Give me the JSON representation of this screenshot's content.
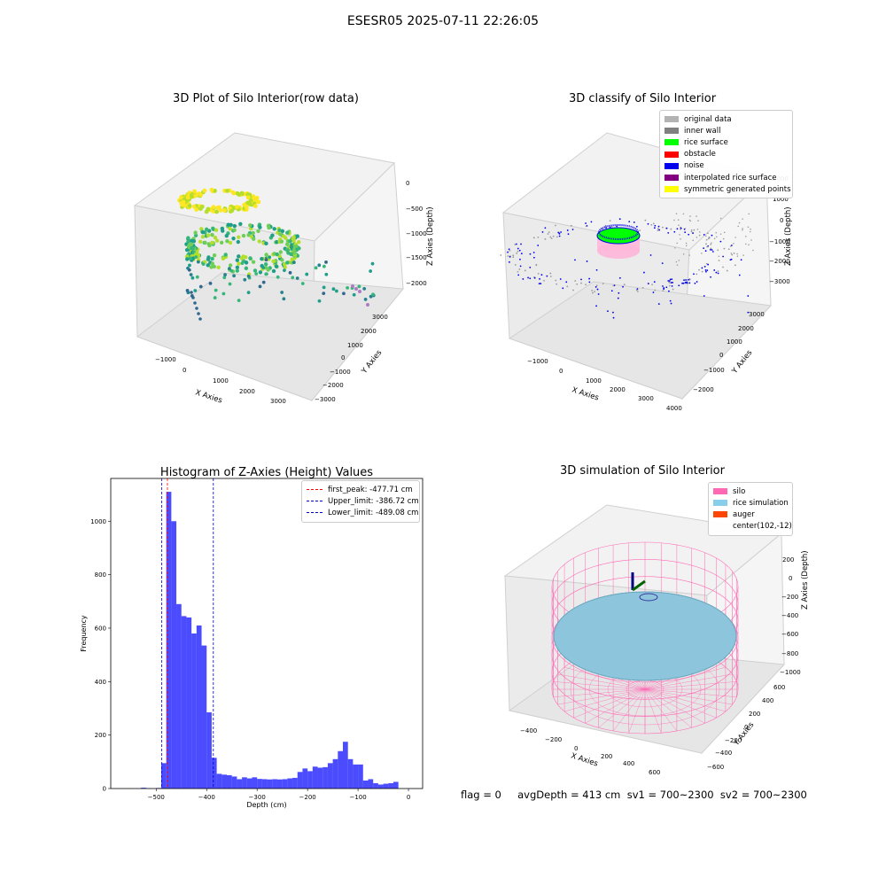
{
  "suptitle": "ESESR05 2025-07-11 22:26:05",
  "panels": {
    "raw": {
      "title": "3D Plot of Silo Interior(row data)",
      "xlabel": "X Axies",
      "ylabel": "Y Axies",
      "zlabel": "Z Axies (Depth)",
      "xticks": [
        "−1000",
        "0",
        "1000",
        "2000",
        "3000"
      ],
      "yticks": [
        "3000",
        "2000",
        "1000",
        "0",
        "−1000",
        "−2000",
        "−3000"
      ],
      "zticks": [
        "0",
        "−500",
        "−1000",
        "−1500",
        "−2000"
      ]
    },
    "classify": {
      "title": "3D classify of Silo Interior",
      "xlabel": "X Axies",
      "ylabel": "Y Axies",
      "zlabel": "Z Axies (Depth)",
      "xticks": [
        "−1000",
        "0",
        "1000",
        "2000",
        "3000",
        "4000"
      ],
      "yticks": [
        "3000",
        "2000",
        "1000",
        "0",
        "−1000",
        "−2000"
      ],
      "zticks": [
        "2000",
        "1000",
        "0",
        "−1000",
        "−2000",
        "−3000"
      ],
      "legend": [
        {
          "label": "original data",
          "color": "#b3b3b3"
        },
        {
          "label": "inner wall",
          "color": "#808080"
        },
        {
          "label": "rice surface",
          "color": "#00ff00"
        },
        {
          "label": "obstacle",
          "color": "#ff0000"
        },
        {
          "label": "noise",
          "color": "#0000ee"
        },
        {
          "label": "interpolated rice surface",
          "color": "#800080"
        },
        {
          "label": "symmetric generated points",
          "color": "#ffff00"
        }
      ]
    },
    "simulation": {
      "title": "3D simulation of Silo Interior",
      "xlabel": "X Axies",
      "ylabel": "Y Axies",
      "zlabel": "Z Axies (Depth)",
      "xticks": [
        "−400",
        "−200",
        "0",
        "200",
        "400",
        "600"
      ],
      "yticks": [
        "600",
        "400",
        "200",
        "0",
        "−200",
        "−400",
        "−600"
      ],
      "zticks": [
        "200",
        "0",
        "−200",
        "−400",
        "−600",
        "−800",
        "−1000"
      ],
      "legend": [
        {
          "label": "silo",
          "color": "#ff69b4"
        },
        {
          "label": "rice simulation",
          "color": "#87ceeb"
        },
        {
          "label": "auger",
          "color": "#ff4500"
        },
        {
          "label": "center(102,-12)",
          "color": ""
        }
      ]
    }
  },
  "status": {
    "text": "flag = 0     avgDepth = 413 cm  sv1 = 700~2300  sv2 = 700~2300"
  },
  "chart_data": {
    "type": "bar",
    "title": "Histogram of Z-Axies (Height) Values",
    "xlabel": "Depth (cm)",
    "ylabel": "Frequency",
    "xlim": [
      -590,
      28
    ],
    "ylim": [
      0,
      1160
    ],
    "xticks": [
      -500,
      -400,
      -300,
      -200,
      -100,
      0
    ],
    "yticks": [
      0,
      200,
      400,
      600,
      800,
      1000
    ],
    "bar_color": "#0000ff",
    "bin_width": 10,
    "bins": [
      {
        "x": -565,
        "value": 0
      },
      {
        "x": -555,
        "value": 0
      },
      {
        "x": -545,
        "value": 0
      },
      {
        "x": -535,
        "value": 0
      },
      {
        "x": -525,
        "value": 3
      },
      {
        "x": -515,
        "value": 1
      },
      {
        "x": -505,
        "value": 0
      },
      {
        "x": -495,
        "value": 2
      },
      {
        "x": -485,
        "value": 95
      },
      {
        "x": -475,
        "value": 1110
      },
      {
        "x": -465,
        "value": 1000
      },
      {
        "x": -455,
        "value": 690
      },
      {
        "x": -445,
        "value": 645
      },
      {
        "x": -435,
        "value": 640
      },
      {
        "x": -425,
        "value": 580
      },
      {
        "x": -415,
        "value": 610
      },
      {
        "x": -405,
        "value": 535
      },
      {
        "x": -395,
        "value": 285
      },
      {
        "x": -385,
        "value": 115
      },
      {
        "x": -375,
        "value": 55
      },
      {
        "x": -365,
        "value": 52
      },
      {
        "x": -355,
        "value": 50
      },
      {
        "x": -345,
        "value": 45
      },
      {
        "x": -335,
        "value": 35
      },
      {
        "x": -325,
        "value": 42
      },
      {
        "x": -315,
        "value": 38
      },
      {
        "x": -305,
        "value": 42
      },
      {
        "x": -295,
        "value": 36
      },
      {
        "x": -285,
        "value": 35
      },
      {
        "x": -275,
        "value": 34
      },
      {
        "x": -265,
        "value": 35
      },
      {
        "x": -255,
        "value": 34
      },
      {
        "x": -245,
        "value": 35
      },
      {
        "x": -235,
        "value": 38
      },
      {
        "x": -225,
        "value": 40
      },
      {
        "x": -215,
        "value": 62
      },
      {
        "x": -205,
        "value": 75
      },
      {
        "x": -195,
        "value": 65
      },
      {
        "x": -185,
        "value": 82
      },
      {
        "x": -175,
        "value": 78
      },
      {
        "x": -165,
        "value": 80
      },
      {
        "x": -155,
        "value": 95
      },
      {
        "x": -145,
        "value": 110
      },
      {
        "x": -135,
        "value": 140
      },
      {
        "x": -125,
        "value": 175
      },
      {
        "x": -115,
        "value": 110
      },
      {
        "x": -105,
        "value": 90
      },
      {
        "x": -95,
        "value": 90
      },
      {
        "x": -85,
        "value": 30
      },
      {
        "x": -75,
        "value": 35
      },
      {
        "x": -65,
        "value": 20
      },
      {
        "x": -55,
        "value": 15
      },
      {
        "x": -45,
        "value": 18
      },
      {
        "x": -35,
        "value": 20
      },
      {
        "x": -25,
        "value": 25
      },
      {
        "x": -15,
        "value": 0
      },
      {
        "x": -5,
        "value": 0
      }
    ],
    "vlines": [
      {
        "label": "first_peak: -477.71 cm",
        "x": -477.71,
        "color": "#ff0000"
      },
      {
        "label": "Upper_limit: -386.72 cm",
        "x": -386.72,
        "color": "#0000cc"
      },
      {
        "label": "Lower_limit: -489.08 cm",
        "x": -489.08,
        "color": "#0000cc"
      }
    ],
    "legend_position": "top-right"
  }
}
